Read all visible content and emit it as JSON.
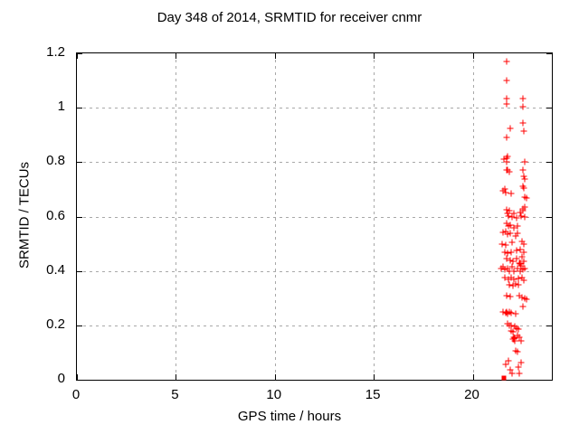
{
  "chart_data": {
    "type": "scatter",
    "title": "Day 348 of 2014, SRMTID for receiver cnmr",
    "xlabel": "GPS time / hours",
    "ylabel": "SRMTID / TECUs",
    "xlim": [
      0,
      24
    ],
    "ylim": [
      0,
      1.2
    ],
    "xticks": {
      "values": [
        0,
        5,
        10,
        15,
        20
      ],
      "labels": [
        "0",
        "5",
        "10",
        "15",
        "20"
      ]
    },
    "yticks": {
      "values": [
        0,
        0.2,
        0.4,
        0.6,
        0.8,
        1,
        1.2
      ],
      "labels": [
        "0",
        "0.2",
        "0.4",
        "0.6",
        "0.8",
        "1",
        "1.2"
      ]
    },
    "grid": true,
    "legend": "none",
    "marker": "plus",
    "marker_color": "#ff0000",
    "grid_color": "#a8a8a8",
    "series": [
      {
        "name": "SRMTID",
        "points": [
          [
            21.72,
            1.17
          ],
          [
            21.72,
            1.1
          ],
          [
            21.7,
            1.035
          ],
          [
            21.72,
            1.015
          ],
          [
            22.52,
            1.035
          ],
          [
            22.54,
            1.005
          ],
          [
            21.88,
            0.925
          ],
          [
            22.52,
            0.945
          ],
          [
            22.58,
            0.915
          ],
          [
            21.72,
            0.89
          ],
          [
            21.56,
            0.81
          ],
          [
            21.7,
            0.815
          ],
          [
            21.76,
            0.82
          ],
          [
            21.72,
            0.8
          ],
          [
            22.64,
            0.8
          ],
          [
            21.7,
            0.77
          ],
          [
            21.78,
            0.772
          ],
          [
            21.86,
            0.765
          ],
          [
            22.52,
            0.77
          ],
          [
            22.56,
            0.748
          ],
          [
            22.64,
            0.738
          ],
          [
            22.52,
            0.712
          ],
          [
            22.6,
            0.705
          ],
          [
            21.52,
            0.695
          ],
          [
            21.6,
            0.7
          ],
          [
            21.68,
            0.688
          ],
          [
            21.94,
            0.685
          ],
          [
            22.62,
            0.672
          ],
          [
            22.74,
            0.668
          ],
          [
            22.62,
            0.635
          ],
          [
            22.55,
            0.628
          ],
          [
            21.7,
            0.625
          ],
          [
            21.85,
            0.622
          ],
          [
            21.78,
            0.612
          ],
          [
            22.1,
            0.612
          ],
          [
            22.42,
            0.615
          ],
          [
            22.52,
            0.622
          ],
          [
            21.8,
            0.601
          ],
          [
            21.98,
            0.598
          ],
          [
            22.2,
            0.596
          ],
          [
            22.44,
            0.602
          ],
          [
            22.62,
            0.599
          ],
          [
            21.7,
            0.575
          ],
          [
            21.9,
            0.57
          ],
          [
            21.8,
            0.565
          ],
          [
            22.08,
            0.56
          ],
          [
            22.25,
            0.565
          ],
          [
            21.55,
            0.542
          ],
          [
            21.68,
            0.545
          ],
          [
            21.78,
            0.535
          ],
          [
            21.9,
            0.54
          ],
          [
            22.15,
            0.53
          ],
          [
            22.28,
            0.538
          ],
          [
            21.48,
            0.5
          ],
          [
            21.66,
            0.495
          ],
          [
            21.98,
            0.505
          ],
          [
            22.5,
            0.51
          ],
          [
            22.6,
            0.5
          ],
          [
            21.6,
            0.47
          ],
          [
            21.78,
            0.465
          ],
          [
            21.92,
            0.47
          ],
          [
            22.22,
            0.475
          ],
          [
            22.4,
            0.48
          ],
          [
            22.56,
            0.468
          ],
          [
            21.7,
            0.445
          ],
          [
            21.88,
            0.44
          ],
          [
            22.05,
            0.435
          ],
          [
            22.2,
            0.445
          ],
          [
            22.48,
            0.452
          ],
          [
            22.6,
            0.435
          ],
          [
            22.35,
            0.43
          ],
          [
            22.38,
            0.424
          ],
          [
            22.41,
            0.43
          ],
          [
            22.43,
            0.418
          ],
          [
            21.42,
            0.41
          ],
          [
            21.52,
            0.415
          ],
          [
            21.62,
            0.405
          ],
          [
            21.75,
            0.41
          ],
          [
            21.85,
            0.4
          ],
          [
            22.0,
            0.414
          ],
          [
            22.1,
            0.4
          ],
          [
            22.25,
            0.408
          ],
          [
            22.4,
            0.398
          ],
          [
            22.52,
            0.405
          ],
          [
            22.65,
            0.41
          ],
          [
            21.62,
            0.375
          ],
          [
            21.8,
            0.37
          ],
          [
            21.95,
            0.374
          ],
          [
            22.1,
            0.368
          ],
          [
            22.3,
            0.372
          ],
          [
            22.48,
            0.375
          ],
          [
            22.6,
            0.364
          ],
          [
            21.85,
            0.35
          ],
          [
            22.05,
            0.345
          ],
          [
            22.18,
            0.352
          ],
          [
            22.3,
            0.348
          ],
          [
            21.7,
            0.31
          ],
          [
            21.9,
            0.305
          ],
          [
            22.35,
            0.31
          ],
          [
            22.5,
            0.304
          ],
          [
            22.62,
            0.3
          ],
          [
            22.72,
            0.295
          ],
          [
            22.55,
            0.27
          ],
          [
            21.55,
            0.25
          ],
          [
            21.65,
            0.245
          ],
          [
            21.72,
            0.248
          ],
          [
            21.78,
            0.243
          ],
          [
            21.85,
            0.25
          ],
          [
            21.92,
            0.246
          ],
          [
            22.15,
            0.243
          ],
          [
            21.75,
            0.205
          ],
          [
            21.85,
            0.2
          ],
          [
            21.95,
            0.198
          ],
          [
            22.12,
            0.196
          ],
          [
            22.2,
            0.19
          ],
          [
            22.3,
            0.186
          ],
          [
            21.92,
            0.18
          ],
          [
            22.02,
            0.175
          ],
          [
            22.05,
            0.148
          ],
          [
            22.08,
            0.155
          ],
          [
            22.1,
            0.15
          ],
          [
            22.12,
            0.144
          ],
          [
            22.14,
            0.152
          ],
          [
            22.28,
            0.163
          ],
          [
            22.35,
            0.156
          ],
          [
            22.45,
            0.142
          ],
          [
            22.18,
            0.106
          ],
          [
            22.28,
            0.103
          ],
          [
            21.68,
            0.056
          ],
          [
            21.8,
            0.07
          ],
          [
            22.45,
            0.063
          ],
          [
            21.9,
            0.037
          ],
          [
            22.3,
            0.047
          ],
          [
            22.0,
            0.023
          ],
          [
            22.35,
            0.022
          ]
        ]
      }
    ],
    "zero_cluster_square": {
      "x": 21.58,
      "y": 0.005
    }
  }
}
